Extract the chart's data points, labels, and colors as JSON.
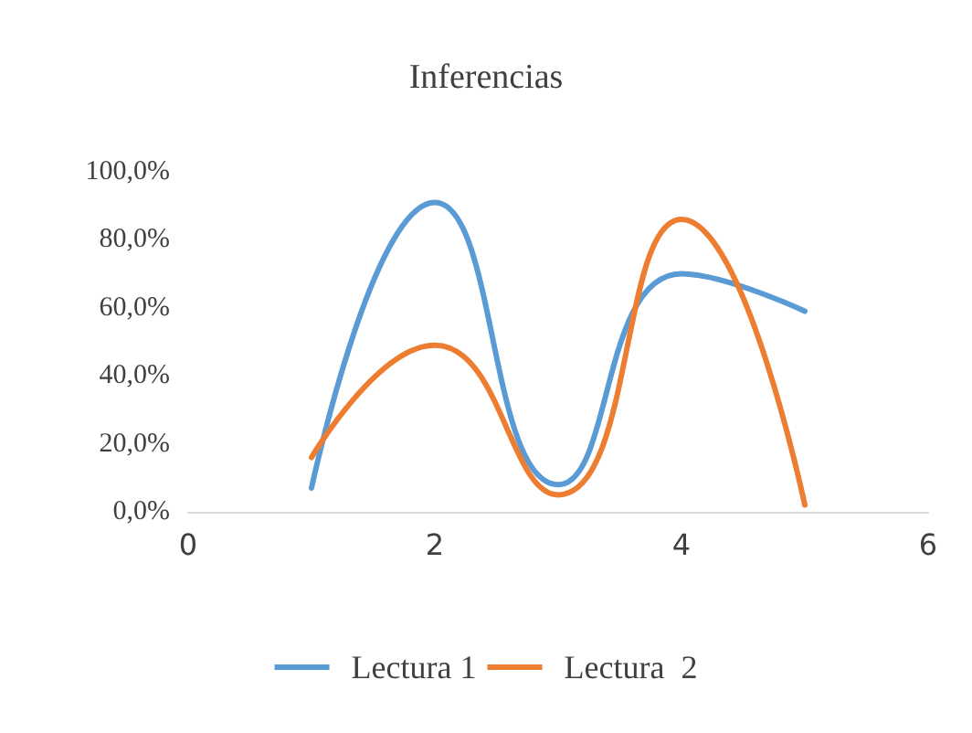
{
  "chart_data": {
    "type": "line",
    "title": "Inferencias",
    "x": [
      1,
      2,
      3,
      4,
      5
    ],
    "series": [
      {
        "name": "Lectura 1",
        "color": "#5b9bd5",
        "values": [
          7,
          91,
          8,
          70,
          59
        ]
      },
      {
        "name": "Lectura  2",
        "color": "#ed7d31",
        "values": [
          16,
          49,
          5,
          86,
          2
        ]
      }
    ],
    "xlim": [
      0,
      6
    ],
    "xticks": [
      0,
      2,
      4,
      6
    ],
    "ylim": [
      0,
      100
    ],
    "yticks": [
      {
        "value": 0,
        "label": "0,0%"
      },
      {
        "value": 20,
        "label": "20,0%"
      },
      {
        "value": 40,
        "label": "40,0%"
      },
      {
        "value": 60,
        "label": "60,0%"
      },
      {
        "value": 80,
        "label": "80,0%"
      },
      {
        "value": 100,
        "label": "100,0%"
      }
    ],
    "legend": "bottom",
    "marker": "none",
    "line_style": "solid"
  }
}
